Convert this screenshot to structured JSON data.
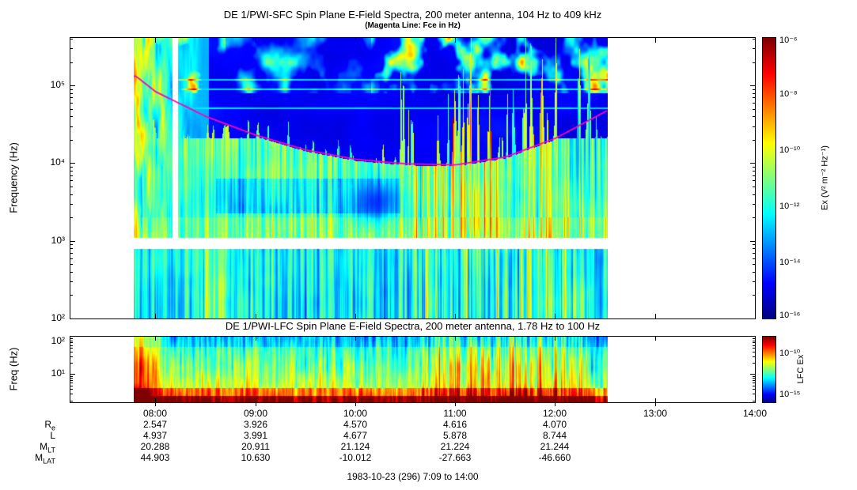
{
  "header": {
    "title": "DE 1/PWI-SFC  Spin Plane E-Field Spectra, 200 meter antenna, 104 Hz to 409 kHz",
    "subtitle": "(Magenta Line: Fce in Hz)"
  },
  "sfc": {
    "ylabel": "Frequency (Hz)",
    "yticks": [
      "10⁵",
      "10⁴",
      "10³",
      "10²"
    ],
    "colorbar": {
      "label": "Ex (V² m⁻² Hz⁻¹)",
      "ticks": [
        "10⁻⁶",
        "10⁻⁸",
        "10⁻¹⁰",
        "10⁻¹²",
        "10⁻¹⁴",
        "10⁻¹⁶"
      ]
    }
  },
  "lfc": {
    "title": "DE 1/PWI-LFC  Spin Plane E-Field Spectra, 200 meter antenna, 1.78 Hz to 100 Hz",
    "ylabel": "Freq (Hz)",
    "yticks": [
      "10²",
      "10¹"
    ],
    "colorbar": {
      "label": "LFC Ex",
      "ticks": [
        "10⁻¹⁰",
        "10⁻¹⁵"
      ]
    }
  },
  "xaxis": {
    "ticks": [
      "08:00",
      "09:00",
      "10:00",
      "11:00",
      "12:00",
      "13:00",
      "14:00"
    ]
  },
  "ephemeris": {
    "rows": [
      {
        "label": [
          {
            "t": "R"
          },
          {
            "sub": "e"
          }
        ],
        "values": [
          "2.547",
          "3.926",
          "4.570",
          "4.616",
          "4.070"
        ]
      },
      {
        "label": [
          {
            "t": "L"
          }
        ],
        "values": [
          "4.937",
          "3.991",
          "4.677",
          "5.878",
          "8.744"
        ]
      },
      {
        "label": [
          {
            "t": "M"
          },
          {
            "sub": "LT"
          }
        ],
        "values": [
          "20.288",
          "20.911",
          "21.124",
          "21.224",
          "21.244"
        ]
      },
      {
        "label": [
          {
            "t": "M"
          },
          {
            "sub": "LAT"
          }
        ],
        "values": [
          "44.903",
          "10.630",
          "-10.012",
          "-27.663",
          "-46.660"
        ]
      }
    ]
  },
  "footer": {
    "text": "1983-10-23 (296) 7:09 to 14:00"
  },
  "chart_data": [
    {
      "type": "heatmap",
      "name": "sfc-spectrogram",
      "title": "DE 1/PWI-SFC Spin Plane E-Field Spectra, 200 meter antenna, 104 Hz to 409 kHz",
      "ylabel": "Frequency (Hz)",
      "y_scale": "log",
      "y_range_hz": [
        100,
        409000
      ],
      "x_range_ut_hours": [
        7.15,
        14.0
      ],
      "data_span_ut_hours": [
        7.78,
        12.52
      ],
      "receiver_gap_hz": [
        790,
        1100
      ],
      "colorbar": {
        "label": "Ex (V^2 m^-2 Hz^-1)",
        "range": [
          1e-16,
          1e-06
        ],
        "scale": "log"
      },
      "fce_line": {
        "label": "Fce in Hz",
        "color": "#ff00bb",
        "ut_hours": [
          7.8,
          8.0,
          8.5,
          9.0,
          9.5,
          10.0,
          10.5,
          11.0,
          11.5,
          12.0,
          12.52
        ],
        "fce_hz": [
          132000,
          83000,
          40000,
          23000,
          14800,
          11200,
          9800,
          9500,
          12000,
          21000,
          48000
        ]
      }
    },
    {
      "type": "heatmap",
      "name": "lfc-spectrogram",
      "title": "DE 1/PWI-LFC Spin Plane E-Field Spectra, 200 meter antenna, 1.78 Hz to 100 Hz",
      "ylabel": "Freq (Hz)",
      "y_scale": "log",
      "y_range_hz": [
        1.78,
        100
      ],
      "x_range_ut_hours": [
        7.15,
        14.0
      ],
      "data_span_ut_hours": [
        7.78,
        12.52
      ],
      "colorbar": {
        "label": "LFC Ex",
        "range": [
          1e-16,
          1e-08
        ],
        "scale": "log"
      }
    }
  ]
}
